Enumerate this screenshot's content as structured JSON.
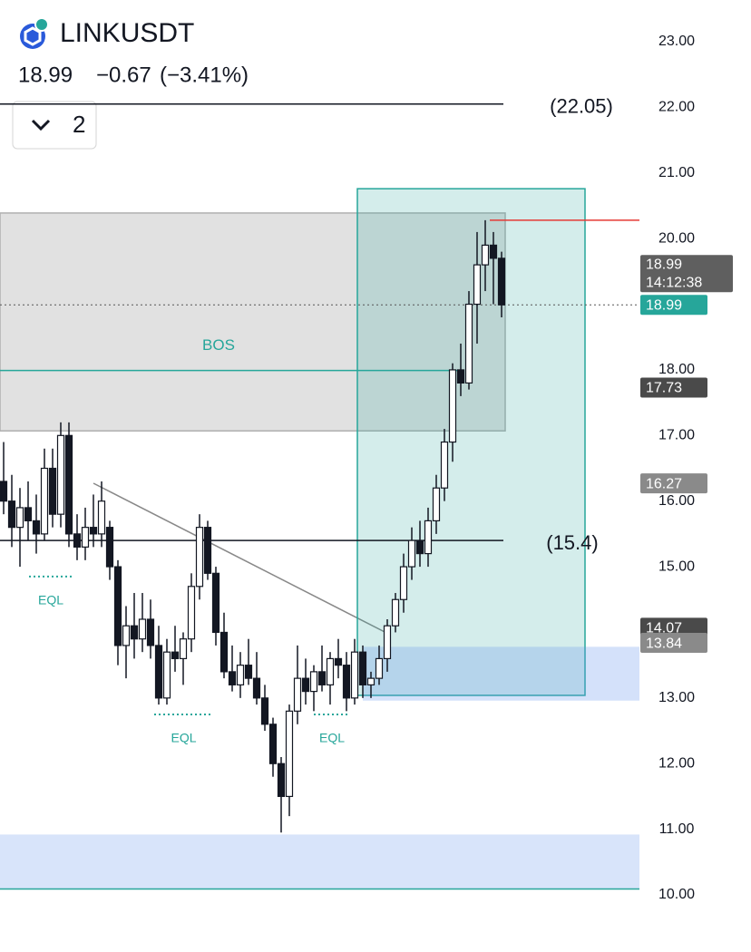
{
  "header": {
    "symbol": "LINKUSDT",
    "price": "18.99",
    "change": "−0.67",
    "change_pct": "(−3.41%)",
    "interval_button": "2"
  },
  "chart_data": {
    "type": "candlestick",
    "ylim": [
      10,
      23
    ],
    "yticks": [
      {
        "value": 10,
        "label": "10.00"
      },
      {
        "value": 11,
        "label": "11.00"
      },
      {
        "value": 12,
        "label": "12.00"
      },
      {
        "value": 13,
        "label": "13.00"
      },
      {
        "value": 14,
        "label": "14.00"
      },
      {
        "value": 15,
        "label": "15.00"
      },
      {
        "value": 16,
        "label": "16.00"
      },
      {
        "value": 17,
        "label": "17.00"
      },
      {
        "value": 18,
        "label": "18.00"
      },
      {
        "value": 19,
        "label": "19.00"
      },
      {
        "value": 20,
        "label": "20.00"
      },
      {
        "value": 21,
        "label": "21.00"
      },
      {
        "value": 22,
        "label": "22.00"
      },
      {
        "value": 23,
        "label": "23.00"
      }
    ],
    "open": [
      16.3,
      16.0,
      15.6,
      15.9,
      15.7,
      15.5,
      16.5,
      15.8,
      17.0,
      15.5,
      15.3,
      15.6,
      15.5,
      15.6,
      15.0,
      13.8,
      14.1,
      13.9,
      14.2,
      13.8,
      13.0,
      13.7,
      13.6,
      13.9,
      14.7,
      15.6,
      14.9,
      14.0,
      13.4,
      13.2,
      13.5,
      13.3,
      13.0,
      12.6,
      12.0,
      11.5,
      12.8,
      13.3,
      13.1,
      13.4,
      13.2,
      13.6,
      13.5,
      13.0,
      13.7,
      13.2,
      13.3,
      13.6,
      14.1,
      14.5,
      15.0,
      15.4,
      15.2,
      15.7,
      16.2,
      16.9,
      18.0,
      17.8,
      19.0,
      19.6,
      19.9,
      19.7
    ],
    "high": [
      16.9,
      16.4,
      16.2,
      16.3,
      16.1,
      16.8,
      16.8,
      17.2,
      17.2,
      15.8,
      15.9,
      16.1,
      16.3,
      15.7,
      15.1,
      14.4,
      14.6,
      14.6,
      14.5,
      14.1,
      13.9,
      14.1,
      14.0,
      14.9,
      15.8,
      15.7,
      15.0,
      14.3,
      13.8,
      13.7,
      13.9,
      13.7,
      13.2,
      12.7,
      12.1,
      12.9,
      13.8,
      13.6,
      13.5,
      13.8,
      13.7,
      13.9,
      13.7,
      13.9,
      13.8,
      13.4,
      13.8,
      14.2,
      14.6,
      15.2,
      15.6,
      15.7,
      15.9,
      16.4,
      17.1,
      18.1,
      18.4,
      19.2,
      20.1,
      20.28,
      20.1,
      19.8
    ],
    "low": [
      15.8,
      15.3,
      15.0,
      15.4,
      15.2,
      15.4,
      15.6,
      15.6,
      15.3,
      15.1,
      15.1,
      15.3,
      15.3,
      14.8,
      13.5,
      13.3,
      13.6,
      13.7,
      13.6,
      12.9,
      12.9,
      13.4,
      13.2,
      13.7,
      14.5,
      14.8,
      13.8,
      13.3,
      13.1,
      13.0,
      13.2,
      12.9,
      12.5,
      11.8,
      10.95,
      11.2,
      12.6,
      12.9,
      12.8,
      13.1,
      12.9,
      13.3,
      12.8,
      12.9,
      13.0,
      13.0,
      13.2,
      13.4,
      14.0,
      14.3,
      14.8,
      15.0,
      15.0,
      15.5,
      16.0,
      16.6,
      17.6,
      17.7,
      18.4,
      19.2,
      19.0,
      18.8
    ],
    "close": [
      16.0,
      15.6,
      15.9,
      15.7,
      15.5,
      16.5,
      15.8,
      17.0,
      15.5,
      15.3,
      15.6,
      15.5,
      16.0,
      15.0,
      13.8,
      14.1,
      13.9,
      14.2,
      13.8,
      13.0,
      13.7,
      13.6,
      13.9,
      14.7,
      15.6,
      14.9,
      14.0,
      13.4,
      13.2,
      13.5,
      13.3,
      13.0,
      12.6,
      12.0,
      11.5,
      12.8,
      13.3,
      13.1,
      13.4,
      13.2,
      13.6,
      13.5,
      13.0,
      13.7,
      13.2,
      13.3,
      13.6,
      14.1,
      14.5,
      15.0,
      15.4,
      15.2,
      15.7,
      16.2,
      16.9,
      18.0,
      17.8,
      19.0,
      19.6,
      19.9,
      19.7,
      18.99
    ],
    "zones": [
      {
        "top": 20.39,
        "bottom": 17.07,
        "color": "rgba(120,120,120,0.22)",
        "stroke": "#b0b0b0"
      },
      {
        "top": 20.76,
        "bottom": 13.04,
        "color": "rgba(38,166,154,0.2)",
        "stroke": "#26a69a"
      },
      {
        "top": 13.78,
        "bottom": 12.96,
        "color": "rgba(100,149,237,0.28)",
        "stroke": "none"
      },
      {
        "top": 10.92,
        "bottom": 10.09,
        "color": "rgba(100,149,237,0.25)",
        "stroke": "none"
      }
    ],
    "levels": [
      {
        "value": 22.05,
        "label": "(22.05)"
      },
      {
        "value": 15.4,
        "label": "(15.4)"
      }
    ],
    "bos": {
      "label": "BOS",
      "value": 17.99
    },
    "high_line": 20.28,
    "eql": [
      {
        "label": "EQL",
        "value": 14.85
      },
      {
        "label": "EQL",
        "value": 12.75
      },
      {
        "label": "EQL",
        "value": 12.75
      }
    ],
    "price_badges": [
      {
        "value": 18.99,
        "label": "18.99",
        "time": "14:12:38",
        "color": "#5f5f5f"
      },
      {
        "value": 18.99,
        "label": "18.99",
        "color": "#26a69a"
      },
      {
        "value": 17.73,
        "label": "17.73",
        "color": "#4a4a4a"
      },
      {
        "value": 16.27,
        "label": "16.27",
        "color": "#8a8a8a"
      },
      {
        "value": 14.07,
        "label": "14.07",
        "color": "#4a4a4a"
      },
      {
        "value": 13.84,
        "label": "13.84",
        "color": "#8a8a8a"
      }
    ]
  }
}
